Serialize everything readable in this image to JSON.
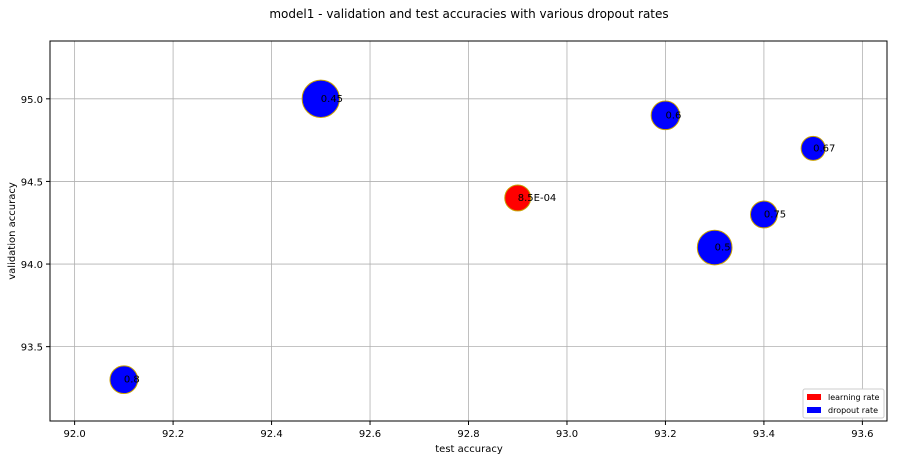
{
  "chart_data": {
    "type": "scatter",
    "title": "model1 - validation and test accuracies with various dropout rates",
    "xlabel": "test accuracy",
    "ylabel": "validation accuracy",
    "xlim": [
      91.95,
      93.65
    ],
    "ylim": [
      93.05,
      95.35
    ],
    "xticks": [
      "92.0",
      "92.2",
      "92.4",
      "92.6",
      "92.8",
      "93.0",
      "93.2",
      "93.4",
      "93.6"
    ],
    "yticks": [
      "93.5",
      "94.0",
      "94.5",
      "95.0"
    ],
    "grid": true,
    "legend_position": "lower-right",
    "legend": [
      {
        "label": "learning rate",
        "color": "#ff0000"
      },
      {
        "label": "dropout rate",
        "color": "#0000ff"
      }
    ],
    "points": [
      {
        "x": 92.1,
        "y": 93.3,
        "label": "0.8",
        "size": 0.8,
        "color": "#0000ff"
      },
      {
        "x": 92.5,
        "y": 95.0,
        "label": "0.45",
        "size": 1.45,
        "color": "#0000ff"
      },
      {
        "x": 92.9,
        "y": 94.4,
        "label": "8.5E-04",
        "size": 0.7,
        "color": "#ff0000"
      },
      {
        "x": 93.2,
        "y": 94.9,
        "label": "0.6",
        "size": 0.85,
        "color": "#0000ff"
      },
      {
        "x": 93.3,
        "y": 94.1,
        "label": "0.5",
        "size": 1.25,
        "color": "#0000ff"
      },
      {
        "x": 93.4,
        "y": 94.3,
        "label": "0.75",
        "size": 0.75,
        "color": "#0000ff"
      },
      {
        "x": 93.5,
        "y": 94.7,
        "label": "0.67",
        "size": 0.6,
        "color": "#0000ff"
      }
    ],
    "marker_edge_color": "#c8a000"
  }
}
